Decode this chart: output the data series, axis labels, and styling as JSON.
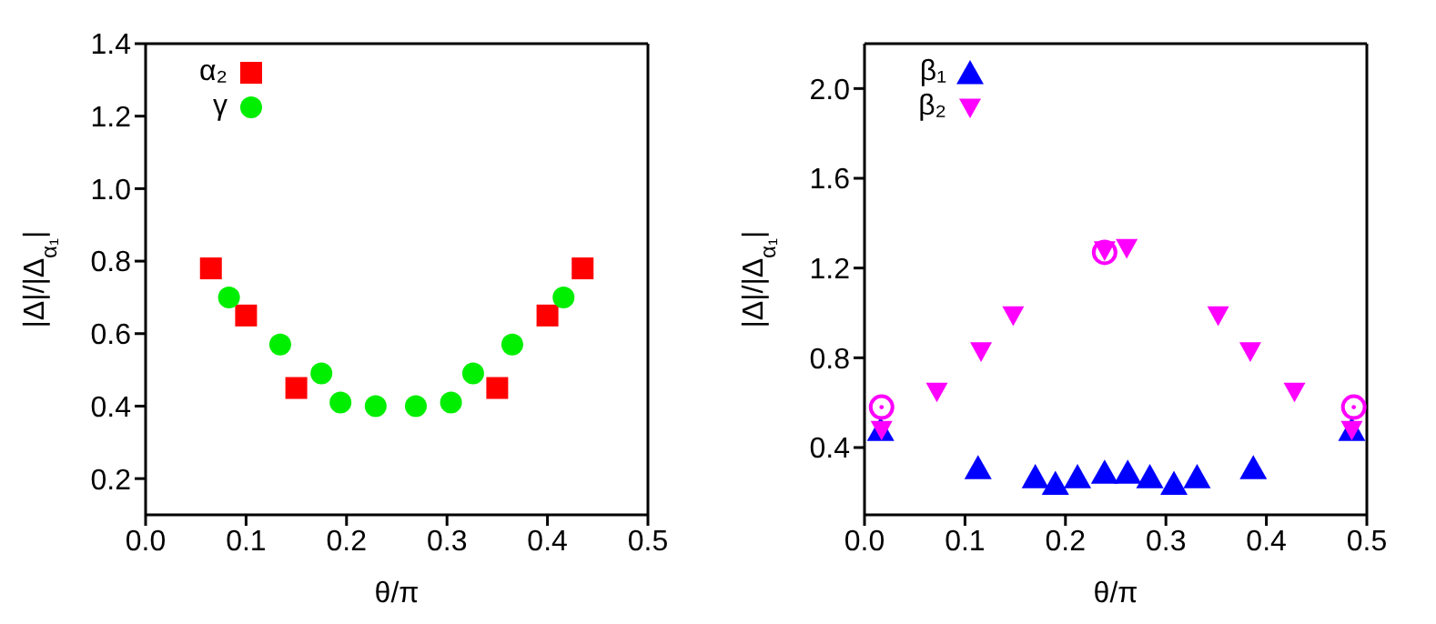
{
  "chart_data": [
    {
      "type": "scatter",
      "xlabel": "θ/π",
      "ylabel": "|Δ|/|Δ$_{α₁}$|",
      "xlim": [
        0,
        0.5
      ],
      "xticks": [
        {
          "value": 0,
          "label": "0.0"
        },
        0.1,
        0.2,
        0.3,
        0.4,
        0.5
      ],
      "ylim": [
        0.1,
        1.4
      ],
      "yticks": [
        0.2,
        0.4,
        0.6,
        0.8,
        {
          "value": 1,
          "label": "1.0"
        },
        1.2,
        1.4
      ],
      "legend": "top left",
      "grid": false,
      "series": [
        {
          "name": "α₂",
          "color": "#ff0000",
          "marker": "square",
          "x": [
            0.065,
            0.1,
            0.15,
            0.35,
            0.4,
            0.435
          ],
          "values": [
            0.78,
            0.65,
            0.45,
            0.45,
            0.65,
            0.78
          ]
        },
        {
          "name": "γ",
          "color": "#00ee00",
          "marker": "circle",
          "x": [
            0.083,
            0.134,
            0.175,
            0.194,
            0.229,
            0.269,
            0.304,
            0.326,
            0.365,
            0.416
          ],
          "values": [
            0.7,
            0.57,
            0.49,
            0.41,
            0.4,
            0.4,
            0.41,
            0.49,
            0.57,
            0.7
          ]
        }
      ]
    },
    {
      "type": "scatter",
      "xlabel": "θ/π",
      "ylabel": "|Δ|/|Δ$_{α₁}$|",
      "xlim": [
        0,
        0.5
      ],
      "xticks": [
        {
          "value": 0,
          "label": "0.0"
        },
        0.1,
        0.2,
        0.3,
        0.4,
        0.5
      ],
      "ylim": [
        0.1,
        2.2
      ],
      "yticks": [
        0.4,
        0.8,
        1.2,
        1.6,
        {
          "value": 2,
          "label": "2.0"
        }
      ],
      "legend": "top left",
      "grid": false,
      "series": [
        {
          "name": "β₁",
          "color": "#0000ff",
          "marker": "triangle",
          "x": [
            0.016,
            0.113,
            0.17,
            0.19,
            0.212,
            0.239,
            0.262,
            0.284,
            0.308,
            0.331,
            0.387,
            0.485
          ],
          "values": [
            0.48,
            0.31,
            0.27,
            0.24,
            0.27,
            0.29,
            0.29,
            0.27,
            0.24,
            0.27,
            0.31,
            0.48
          ]
        },
        {
          "name": "β₂",
          "color": "#ff00ff",
          "marker": "triangle-down",
          "x": [
            0.017,
            0.072,
            0.116,
            0.148,
            0.239,
            0.261,
            0.352,
            0.384,
            0.428,
            0.485
          ],
          "values": [
            0.48,
            0.65,
            0.83,
            0.99,
            1.28,
            1.29,
            0.99,
            0.83,
            0.65,
            0.48
          ]
        },
        {
          "color": "#ff00ff",
          "marker": "circle",
          "x": [
            0.017,
            0.239,
            0.487
          ],
          "values": [
            0.58,
            1.27,
            0.58
          ]
        }
      ]
    }
  ]
}
